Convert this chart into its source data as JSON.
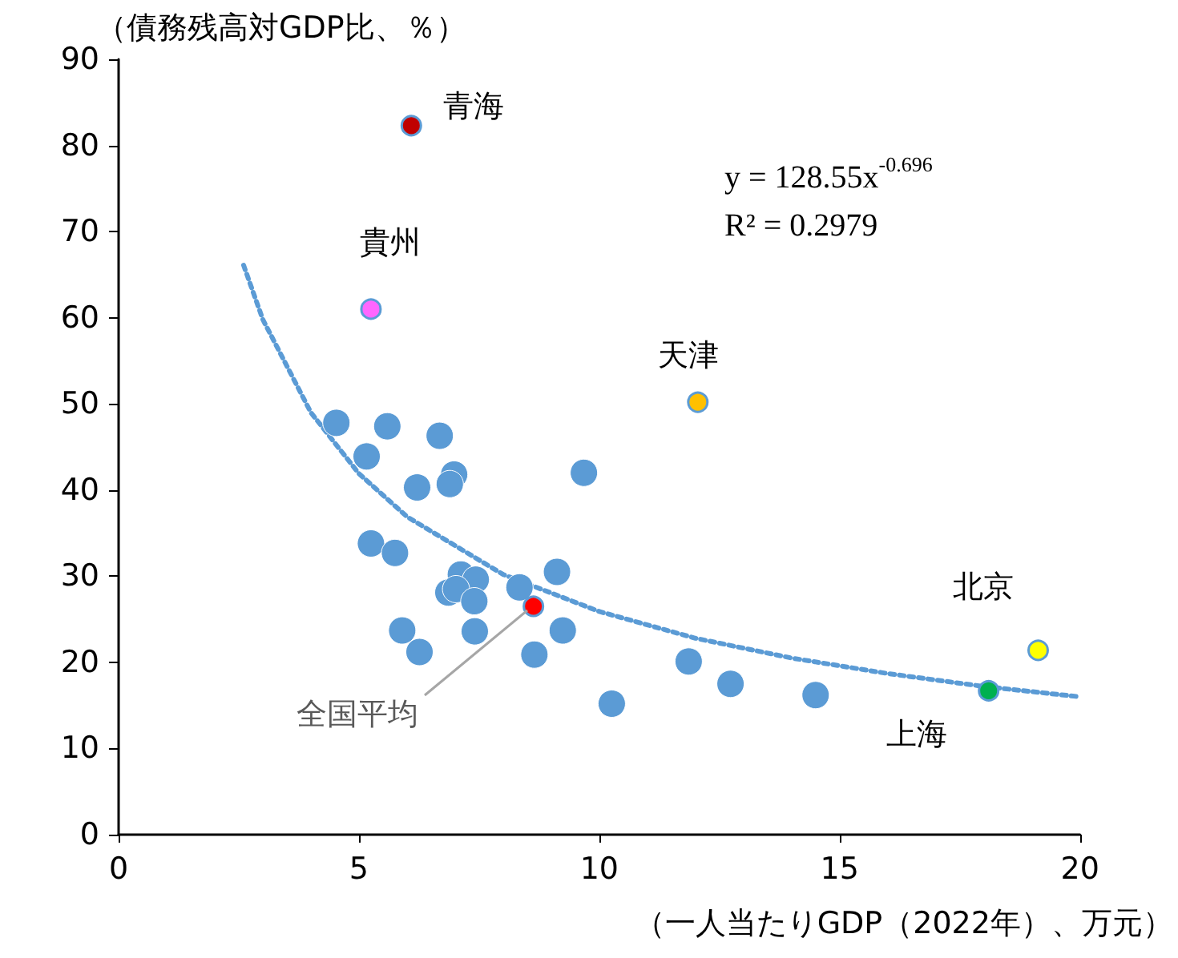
{
  "chart_data": {
    "type": "scatter",
    "xlabel": "（一人当たりGDP（2022年）、万元）",
    "ylabel": "（債務残高対GDP比、％）",
    "xlim": [
      0,
      20
    ],
    "xticks": [
      0,
      5,
      10,
      15,
      20
    ],
    "ylim": [
      0,
      90
    ],
    "yticks": [
      0,
      10,
      20,
      30,
      40,
      50,
      60,
      70,
      80,
      90
    ],
    "grid": false,
    "legend": false,
    "marker": "circle",
    "annotations": [
      "y = 128.55x$^{-0.696}$",
      "R² = 0.2979",
      {
        "text": "全国平均",
        "x": 8.63,
        "y": 26.5
      }
    ],
    "series": [
      {
        "color": "#5b9bd5",
        "x": [
          4.53,
          5.16,
          5.59,
          6.68,
          6.21,
          6.98,
          6.89,
          9.68,
          5.25,
          5.75,
          7.12,
          7.43,
          6.86,
          7.02,
          7.4,
          8.34,
          9.12,
          5.9,
          6.26,
          7.41,
          9.24,
          8.65,
          10.26,
          11.86,
          12.73,
          14.5
        ],
        "values": [
          47.8,
          43.9,
          47.4,
          46.3,
          40.3,
          41.8,
          40.7,
          42.0,
          33.8,
          32.7,
          30.2,
          29.6,
          28.1,
          28.5,
          27.1,
          28.7,
          30.5,
          23.7,
          21.2,
          23.6,
          23.7,
          20.9,
          15.2,
          20.1,
          17.5,
          16.2
        ]
      },
      {
        "name": "青海",
        "color": "#c00000",
        "x": [
          6.09
        ],
        "values": [
          82.3
        ]
      },
      {
        "name": "貴州",
        "color": "#ff66ff",
        "x": [
          5.25
        ],
        "values": [
          61.0
        ]
      },
      {
        "name": "天津",
        "color": "#ffc000",
        "x": [
          12.05
        ],
        "values": [
          50.2
        ]
      },
      {
        "name": "北京",
        "color": "#ffff00",
        "x": [
          19.13
        ],
        "values": [
          21.4
        ]
      },
      {
        "name": "上海",
        "color": "#00b050",
        "x": [
          18.1
        ],
        "values": [
          16.7
        ]
      },
      {
        "color": "#ff0000",
        "x": [
          8.63
        ],
        "values": [
          26.5
        ]
      },
      {
        "type": "line",
        "color": "#5b9bd5",
        "line_style": "dotted",
        "marker": "none",
        "x": [
          2.6,
          3,
          4,
          5,
          6,
          8,
          10,
          12,
          14,
          16,
          18,
          20
        ],
        "values": [
          66.1,
          59.8,
          49.0,
          41.9,
          36.9,
          30.2,
          25.9,
          22.8,
          20.5,
          18.7,
          17.2,
          16.0
        ]
      }
    ]
  }
}
